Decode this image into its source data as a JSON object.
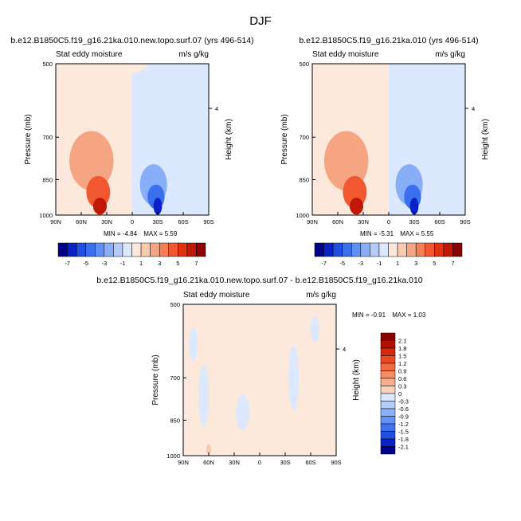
{
  "figure": {
    "title": "DJF"
  },
  "chart_data": [
    {
      "type": "heatmap",
      "title": "b.e12.B1850C5.f19_g16.21ka.010.new.topo.surf.07 (yrs 496-514)",
      "subtitle_left": "Stat eddy moisture",
      "subtitle_right": "m/s g/kg",
      "ylabel": "Pressure (mb)",
      "ylabel_right": "Height (km)",
      "x_ticks": [
        "90N",
        "60N",
        "30N",
        "0",
        "30S",
        "60S",
        "90S"
      ],
      "y_ticks": [
        "500",
        "700",
        "850",
        "1000"
      ],
      "y_ticks_right": [
        "4"
      ],
      "min_label": "MIN =",
      "min_value": "-4.84",
      "max_label": "MAX =",
      "max_value": "5.59",
      "colorbar_labels": [
        "-7",
        "-5",
        "-3",
        "-1",
        "1",
        "3",
        "5",
        "7"
      ],
      "colorbar_colors": [
        "#00008b",
        "#0a21c8",
        "#1f4fe0",
        "#3a6fee",
        "#5f90f4",
        "#88aef7",
        "#b2cbfa",
        "#dbe8fd",
        "#fde8dc",
        "#f9c9b0",
        "#f6a582",
        "#f47f57",
        "#f1582f",
        "#e23210",
        "#c01806",
        "#8b0000"
      ],
      "blobs": [
        {
          "lat": 48,
          "p": 780,
          "rlat": 26,
          "rp": 200,
          "v": 1
        },
        {
          "lat": 40,
          "p": 900,
          "rlat": 14,
          "rp": 120,
          "v": 2
        },
        {
          "lat": 38,
          "p": 960,
          "rlat": 8,
          "rp": 60,
          "v": 3
        },
        {
          "lat": 8,
          "p": 500,
          "rlat": 26,
          "rp": 80,
          "v": 0.5
        },
        {
          "lat": -25,
          "p": 870,
          "rlat": 16,
          "rp": 150,
          "v": -1
        },
        {
          "lat": -28,
          "p": 920,
          "rlat": 10,
          "rp": 90,
          "v": -2
        },
        {
          "lat": -30,
          "p": 960,
          "rlat": 5,
          "rp": 60,
          "v": -3
        }
      ]
    },
    {
      "type": "heatmap",
      "title": "b.e12.B1850C5.f19_g16.21ka.010 (yrs 496-514)",
      "subtitle_left": "Stat eddy moisture",
      "subtitle_right": "m/s g/kg",
      "ylabel": "Pressure (mb)",
      "ylabel_right": "Height (km)",
      "x_ticks": [
        "90N",
        "60N",
        "30N",
        "0",
        "30S",
        "60S",
        "90S"
      ],
      "y_ticks": [
        "500",
        "700",
        "850",
        "1000"
      ],
      "y_ticks_right": [
        "4"
      ],
      "min_label": "MIN =",
      "min_value": "-5.31",
      "max_label": "MAX =",
      "max_value": "5.55",
      "colorbar_labels": [
        "-7",
        "-5",
        "-3",
        "-1",
        "1",
        "3",
        "5",
        "7"
      ],
      "colorbar_colors": [
        "#00008b",
        "#0a21c8",
        "#1f4fe0",
        "#3a6fee",
        "#5f90f4",
        "#88aef7",
        "#b2cbfa",
        "#dbe8fd",
        "#fde8dc",
        "#f9c9b0",
        "#f6a582",
        "#f47f57",
        "#f1582f",
        "#e23210",
        "#c01806",
        "#8b0000"
      ],
      "blobs": [
        {
          "lat": 50,
          "p": 780,
          "rlat": 26,
          "rp": 200,
          "v": 1
        },
        {
          "lat": 40,
          "p": 900,
          "rlat": 14,
          "rp": 120,
          "v": 2
        },
        {
          "lat": 38,
          "p": 960,
          "rlat": 8,
          "rp": 60,
          "v": 3
        },
        {
          "lat": -24,
          "p": 870,
          "rlat": 16,
          "rp": 150,
          "v": -1
        },
        {
          "lat": -28,
          "p": 920,
          "rlat": 10,
          "rp": 90,
          "v": -2
        },
        {
          "lat": -30,
          "p": 960,
          "rlat": 5,
          "rp": 60,
          "v": -3
        }
      ]
    },
    {
      "type": "heatmap",
      "title": "b.e12.B1850C5.f19_g16.21ka.010.new.topo.surf.07 - b.e12.B1850C5.f19_g16.21ka.010",
      "subtitle_left": "Stat eddy moisture",
      "subtitle_right": "m/s g/kg",
      "ylabel": "Pressure (mb)",
      "ylabel_right": "Height (km)",
      "x_ticks": [
        "90N",
        "60N",
        "30N",
        "0",
        "30S",
        "60S",
        "90S"
      ],
      "y_ticks": [
        "500",
        "700",
        "850",
        "1000"
      ],
      "y_ticks_right": [
        "4"
      ],
      "min_label": "MIN =",
      "min_value": "-0.91",
      "max_label": "MAX =",
      "max_value": "1.03",
      "colorbar_labels": [
        "2.1",
        "1.8",
        "1.5",
        "1.2",
        "0.9",
        "0.6",
        "0.3",
        "0",
        "-0.3",
        "-0.6",
        "-0.9",
        "-1.2",
        "-1.5",
        "-1.8",
        "-2.1"
      ],
      "colorbar_colors": [
        "#8b0000",
        "#b50f04",
        "#d42a0c",
        "#ec4a22",
        "#f26a3f",
        "#f58c64",
        "#f8ae8c",
        "#fbd2bc",
        "#dbe8fd",
        "#b4cdfa",
        "#8cb1f8",
        "#6592f4",
        "#3f72ee",
        "#2050e2",
        "#0a21c8",
        "#00008b"
      ],
      "blobs": [
        {
          "lat": 60,
          "p": 970,
          "rlat": 3,
          "rp": 30,
          "v": 0.5
        },
        {
          "lat": 66,
          "p": 760,
          "rlat": 6,
          "rp": 200,
          "v": -0.5
        },
        {
          "lat": 20,
          "p": 820,
          "rlat": 8,
          "rp": 120,
          "v": -0.5
        },
        {
          "lat": -40,
          "p": 700,
          "rlat": 6,
          "rp": 200,
          "v": -0.5
        },
        {
          "lat": -65,
          "p": 560,
          "rlat": 5,
          "rp": 60,
          "v": -0.5
        },
        {
          "lat": 78,
          "p": 600,
          "rlat": 5,
          "rp": 80,
          "v": -0.5
        }
      ]
    }
  ]
}
